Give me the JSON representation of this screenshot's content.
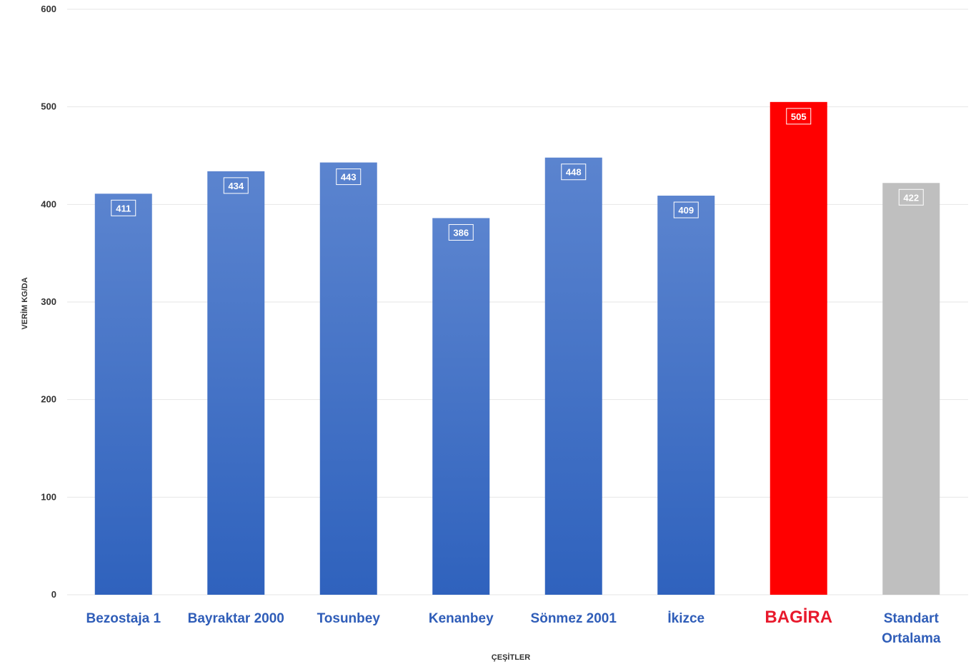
{
  "chart_data": {
    "type": "bar",
    "title": "",
    "xlabel": "ÇEŞİTLER",
    "ylabel": "VERİM KG/DA",
    "ylim": [
      0,
      600
    ],
    "yticks": [
      0,
      100,
      200,
      300,
      400,
      500,
      600
    ],
    "grid": true,
    "legend": "none",
    "categories": [
      "Bezostaja 1",
      "Bayraktar 2000",
      "Tosunbey",
      "Kenanbey",
      "Sönmez 2001",
      "İkizce",
      "BAGİRA",
      "Standart Ortalama"
    ],
    "values": [
      411,
      434,
      443,
      386,
      448,
      409,
      505,
      422
    ],
    "data_labels": [
      "411",
      "434",
      "443",
      "386",
      "448",
      "409",
      "505",
      "422"
    ],
    "colors": {
      "default_bar_top": "#5b84cf",
      "default_bar_bottom": "#2f62bd",
      "highlight_bar": "#ff0000",
      "average_bar": "#bfbfbf",
      "category_text": "#2f5db8",
      "highlight_text": "#e8192c",
      "grid": "#e6e6e6"
    },
    "bar_styles": [
      "default",
      "default",
      "default",
      "default",
      "default",
      "default",
      "highlight",
      "average"
    ]
  }
}
